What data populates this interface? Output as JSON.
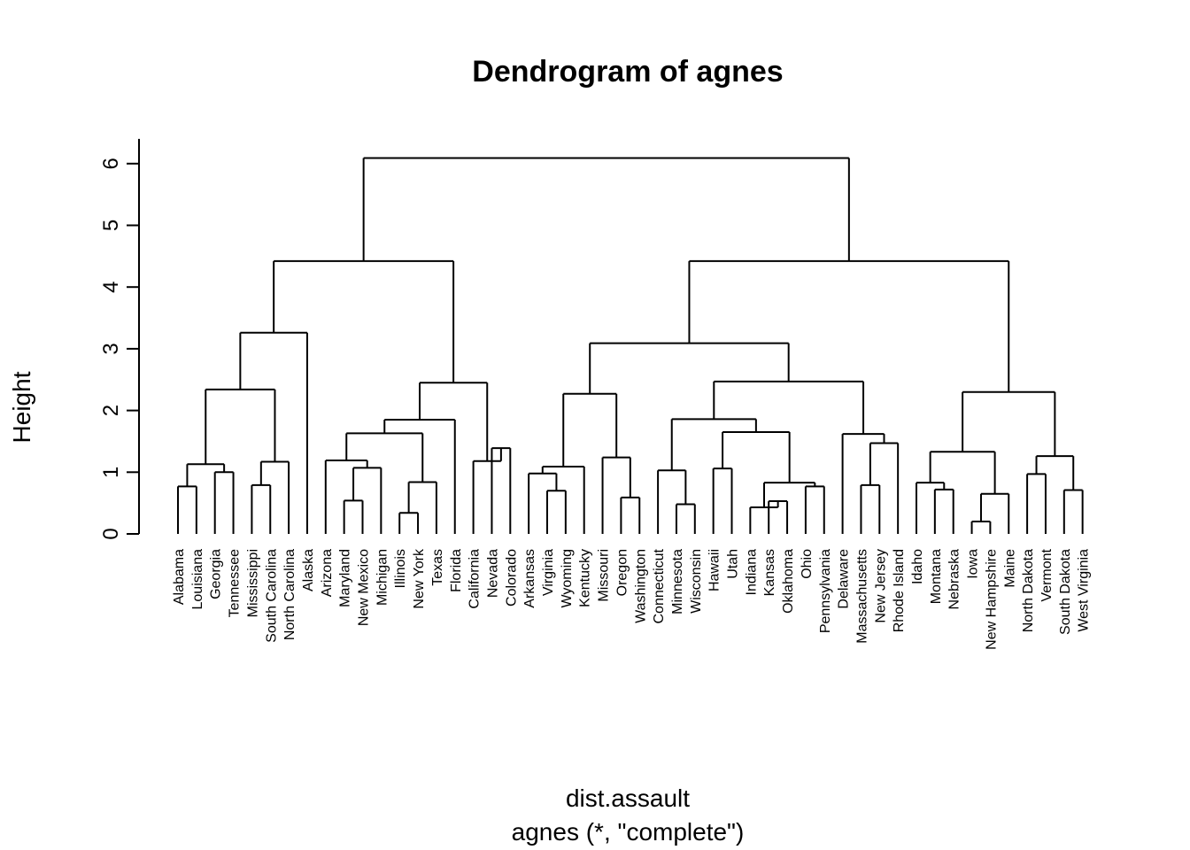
{
  "chart_data": {
    "type": "dendrogram",
    "title": "Dendrogram of agnes",
    "xlabel": "dist.assault",
    "sublabel": "agnes (*, \"complete\")",
    "ylabel": "Height",
    "ylim": [
      0,
      6
    ],
    "yticks": [
      0,
      1,
      2,
      3,
      4,
      5,
      6
    ],
    "leaves": [
      "Alabama",
      "Louisiana",
      "Georgia",
      "Tennessee",
      "Mississippi",
      "South Carolina",
      "North Carolina",
      "Alaska",
      "Arizona",
      "Maryland",
      "New Mexico",
      "Michigan",
      "Illinois",
      "New York",
      "Texas",
      "Florida",
      "California",
      "Nevada",
      "Colorado",
      "Arkansas",
      "Virginia",
      "Wyoming",
      "Kentucky",
      "Missouri",
      "Oregon",
      "Washington",
      "Connecticut",
      "Minnesota",
      "Wisconsin",
      "Hawaii",
      "Utah",
      "Indiana",
      "Kansas",
      "Oklahoma",
      "Ohio",
      "Pennsylvania",
      "Delaware",
      "Massachusetts",
      "New Jersey",
      "Rhode Island",
      "Idaho",
      "Montana",
      "Nebraska",
      "Iowa",
      "New Hampshire",
      "Maine",
      "North Dakota",
      "Vermont",
      "South Dakota",
      "West Virginia"
    ],
    "merges": [
      {
        "a": "L0",
        "b": "L1",
        "h": 0.77,
        "id": "n1"
      },
      {
        "a": "L2",
        "b": "L3",
        "h": 1.0,
        "id": "n2"
      },
      {
        "a": "n1",
        "b": "n2",
        "h": 1.13,
        "id": "n3"
      },
      {
        "a": "L4",
        "b": "L5",
        "h": 0.79,
        "id": "n4"
      },
      {
        "a": "n4",
        "b": "L6",
        "h": 1.17,
        "id": "n5"
      },
      {
        "a": "n3",
        "b": "n5",
        "h": 2.34,
        "id": "n6"
      },
      {
        "a": "n6",
        "b": "L7",
        "h": 3.26,
        "id": "n7"
      },
      {
        "a": "L9",
        "b": "L10",
        "h": 0.54,
        "id": "n8"
      },
      {
        "a": "n8",
        "b": "L11",
        "h": 1.07,
        "id": "n9"
      },
      {
        "a": "L8",
        "b": "n9",
        "h": 1.19,
        "id": "n10"
      },
      {
        "a": "L12",
        "b": "L13",
        "h": 0.34,
        "id": "n11"
      },
      {
        "a": "n11",
        "b": "L14",
        "h": 0.84,
        "id": "n12"
      },
      {
        "a": "n10",
        "b": "n12",
        "h": 1.63,
        "id": "n13"
      },
      {
        "a": "n13",
        "b": "L15",
        "h": 1.85,
        "id": "n14"
      },
      {
        "a": "L17",
        "b": "L18",
        "h": 1.39,
        "id": "n15"
      },
      {
        "a": "L16",
        "b": "n15",
        "h": 1.18,
        "id": "n16"
      },
      {
        "a": "n14",
        "b": "n16",
        "h": 2.45,
        "id": "n17"
      },
      {
        "a": "n7",
        "b": "n17",
        "h": 4.42,
        "id": "n18"
      },
      {
        "a": "L20",
        "b": "L21",
        "h": 0.7,
        "id": "n19"
      },
      {
        "a": "L19",
        "b": "n19",
        "h": 0.98,
        "id": "n20"
      },
      {
        "a": "n20",
        "b": "L22",
        "h": 1.09,
        "id": "n21"
      },
      {
        "a": "L24",
        "b": "L25",
        "h": 0.59,
        "id": "n22"
      },
      {
        "a": "L23",
        "b": "n22",
        "h": 1.24,
        "id": "n23"
      },
      {
        "a": "n21",
        "b": "n23",
        "h": 2.27,
        "id": "n24"
      },
      {
        "a": "L27",
        "b": "L28",
        "h": 0.48,
        "id": "n25"
      },
      {
        "a": "L26",
        "b": "n25",
        "h": 1.03,
        "id": "n26"
      },
      {
        "a": "L29",
        "b": "L30",
        "h": 1.06,
        "id": "n27"
      },
      {
        "a": "L32",
        "b": "L33",
        "h": 0.53,
        "id": "n28"
      },
      {
        "a": "L31",
        "b": "n28",
        "h": 0.43,
        "id": "n29"
      },
      {
        "a": "L34",
        "b": "L35",
        "h": 0.77,
        "id": "n30"
      },
      {
        "a": "n29",
        "b": "n30",
        "h": 0.83,
        "id": "n31"
      },
      {
        "a": "n27",
        "b": "n31",
        "h": 1.65,
        "id": "n32"
      },
      {
        "a": "n26",
        "b": "n32",
        "h": 1.86,
        "id": "n33"
      },
      {
        "a": "L37",
        "b": "L38",
        "h": 0.79,
        "id": "n34"
      },
      {
        "a": "n34",
        "b": "L39",
        "h": 1.47,
        "id": "n35"
      },
      {
        "a": "L36",
        "b": "n35",
        "h": 1.62,
        "id": "n36"
      },
      {
        "a": "n33",
        "b": "n36",
        "h": 2.47,
        "id": "n37"
      },
      {
        "a": "n24",
        "b": "n37",
        "h": 3.09,
        "id": "n38"
      },
      {
        "a": "L41",
        "b": "L42",
        "h": 0.72,
        "id": "n39"
      },
      {
        "a": "L40",
        "b": "n39",
        "h": 0.83,
        "id": "n40"
      },
      {
        "a": "L43",
        "b": "L44",
        "h": 0.2,
        "id": "n41"
      },
      {
        "a": "n41",
        "b": "L45",
        "h": 0.65,
        "id": "n42"
      },
      {
        "a": "n40",
        "b": "n42",
        "h": 1.33,
        "id": "n43"
      },
      {
        "a": "L46",
        "b": "L47",
        "h": 0.97,
        "id": "n44"
      },
      {
        "a": "L48",
        "b": "L49",
        "h": 0.71,
        "id": "n45"
      },
      {
        "a": "n44",
        "b": "n45",
        "h": 1.26,
        "id": "n46"
      },
      {
        "a": "n43",
        "b": "n46",
        "h": 2.3,
        "id": "n47"
      },
      {
        "a": "n38",
        "b": "n47",
        "h": 4.42,
        "id": "n48"
      },
      {
        "a": "n18",
        "b": "n48",
        "h": 6.09,
        "id": "n49"
      }
    ]
  }
}
